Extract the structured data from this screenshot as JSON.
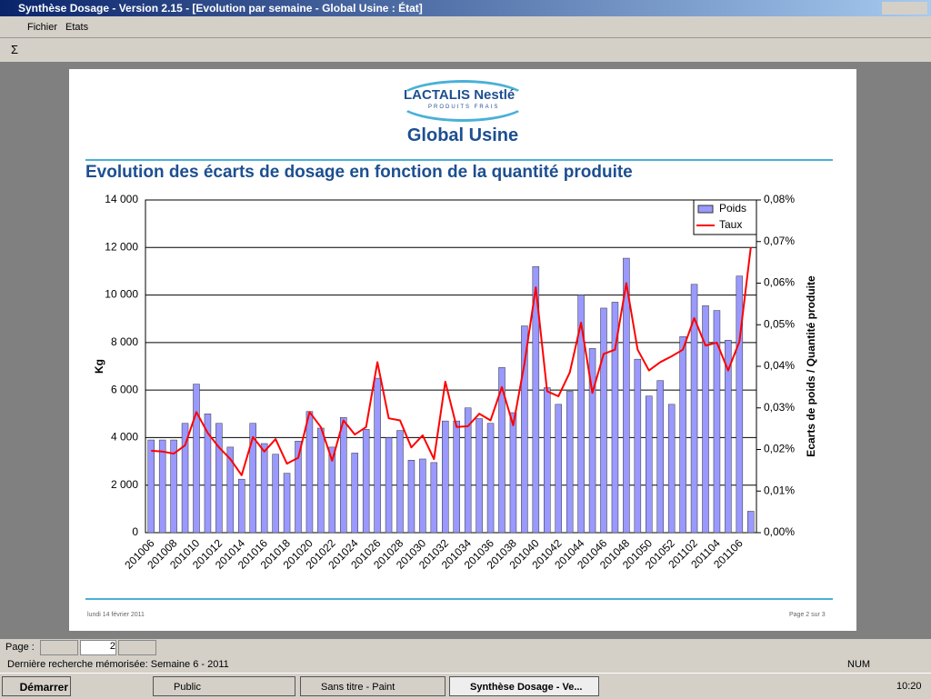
{
  "window": {
    "title": "Synthèse Dosage - Version 2.15 - [Evolution par semaine - Global Usine : État]",
    "menu": [
      "Fichier",
      "Etats"
    ],
    "toolbar_sigma": "Σ",
    "logo": "LACTALIS Nestlé",
    "logo_sub": "PRODUITS FRAIS",
    "report_title": "Global Usine",
    "footer_date": "lundi 14 février 2011",
    "footer_page": "Page 2 sur 3",
    "page_label": "Page :",
    "page_value": "2",
    "status": "Dernière recherche mémorisée: Semaine 6 - 2011",
    "num": "NUM",
    "start": "Démarrer",
    "tasks": [
      "Public",
      "Sans titre - Paint",
      "Synthèse Dosage - Ve..."
    ],
    "clock": "10:20"
  },
  "chart_data": {
    "type": "bar-line",
    "title": "Evolution des écarts de dosage en fonction de la quantité produite",
    "y_label": "Kg",
    "y2_label": "Ecarts de poids / Quantité produite",
    "categories": [
      "201006",
      null,
      "201008",
      null,
      "201010",
      null,
      "201012",
      null,
      "201014",
      null,
      "201016",
      null,
      "201018",
      null,
      "201020",
      null,
      "201022",
      null,
      "201024",
      null,
      "201026",
      null,
      "201028",
      null,
      "201030",
      null,
      "201032",
      null,
      "201034",
      null,
      "201036",
      null,
      "201038",
      null,
      "201040",
      null,
      "201042",
      null,
      "201044",
      null,
      "201046",
      null,
      "201048",
      null,
      "201050",
      null,
      "201052",
      null,
      "201102",
      null,
      "201104",
      null,
      "201106",
      null
    ],
    "series": [
      {
        "name": "Poids",
        "color": "#9999ff",
        "values": [
          3900,
          3900,
          3900,
          4600,
          6250,
          5000,
          4600,
          3600,
          2250,
          4600,
          3750,
          3300,
          2500,
          3850,
          5100,
          4400,
          3600,
          4850,
          3350,
          4350,
          6500,
          4000,
          4300,
          3050,
          3100,
          2950,
          4700,
          4700,
          5250,
          4800,
          4600,
          6950,
          5050,
          8700,
          11200,
          6100,
          5400,
          5950,
          10000,
          7750,
          9450,
          9700,
          11550,
          7300,
          5750,
          6400,
          5400,
          8250,
          10450,
          9550,
          9350,
          8100,
          10800,
          900
        ]
      },
      {
        "name": "Taux",
        "color": "#ff0000",
        "axis": "y2",
        "values": [
          0.0197,
          0.0195,
          0.019,
          0.021,
          0.029,
          0.024,
          0.0205,
          0.0177,
          0.0138,
          0.023,
          0.0195,
          0.0225,
          0.0166,
          0.018,
          0.029,
          0.0254,
          0.0173,
          0.027,
          0.0236,
          0.0254,
          0.041,
          0.0275,
          0.027,
          0.0205,
          0.0234,
          0.0177,
          0.0363,
          0.0254,
          0.0256,
          0.0286,
          0.027,
          0.035,
          0.0258,
          0.0407,
          0.059,
          0.034,
          0.0328,
          0.0385,
          0.0505,
          0.0336,
          0.043,
          0.044,
          0.06,
          0.044,
          0.039,
          0.041,
          0.0424,
          0.044,
          0.0516,
          0.045,
          0.0457,
          0.039,
          0.046,
          0.0686
        ]
      }
    ],
    "ylim": [
      0,
      14000
    ],
    "yticks": [
      0,
      {
        "value": 2000,
        "label": "2 000"
      },
      {
        "value": 4000,
        "label": "4 000"
      },
      {
        "value": 6000,
        "label": "6 000"
      },
      {
        "value": 8000,
        "label": "8 000"
      },
      {
        "value": 10000,
        "label": "10 000"
      },
      {
        "value": 12000,
        "label": "12 000"
      },
      {
        "value": 14000,
        "label": "14 000"
      }
    ],
    "y2lim": [
      0,
      0.08
    ],
    "y2ticks": [
      {
        "value": 0,
        "label": "0,00%"
      },
      {
        "value": 0.01,
        "label": "0,01%"
      },
      {
        "value": 0.02,
        "label": "0,02%"
      },
      {
        "value": 0.03,
        "label": "0,03%"
      },
      {
        "value": 0.04,
        "label": "0,04%"
      },
      {
        "value": 0.05,
        "label": "0,05%"
      },
      {
        "value": 0.06,
        "label": "0,06%"
      },
      {
        "value": 0.07,
        "label": "0,07%"
      },
      {
        "value": 0.08,
        "label": "0,08%"
      }
    ],
    "grid": true,
    "legend": "upper right"
  }
}
